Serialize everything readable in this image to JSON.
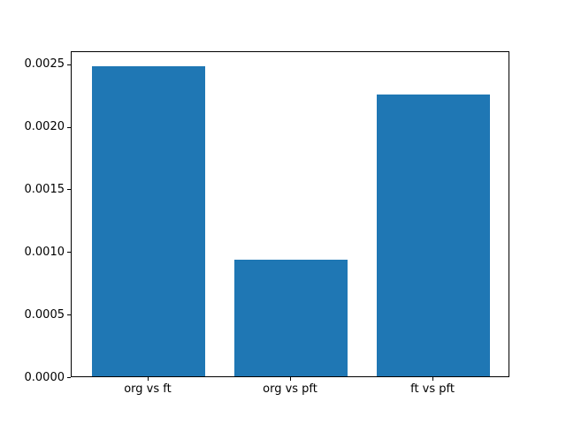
{
  "figure": {
    "background": "#ffffff",
    "spine_color": "#000000",
    "text_color": "#000000"
  },
  "chart_data": {
    "type": "bar",
    "categories": [
      "org vs ft",
      "org vs pft",
      "ft vs pft"
    ],
    "values": [
      0.00248,
      0.00093,
      0.00225
    ],
    "title": "",
    "xlabel": "",
    "ylabel": "",
    "xlim": [
      -0.54,
      2.54
    ],
    "ylim": [
      0,
      0.002604
    ],
    "yticks": [
      0.0,
      0.0005,
      0.001,
      0.0015,
      0.002,
      0.0025
    ],
    "ytick_labels": [
      "0.0000",
      "0.0005",
      "0.0010",
      "0.0015",
      "0.0020",
      "0.0025"
    ],
    "bar_width": 0.8,
    "bar_color": "#1f77b4",
    "grid": false,
    "legend": null
  }
}
